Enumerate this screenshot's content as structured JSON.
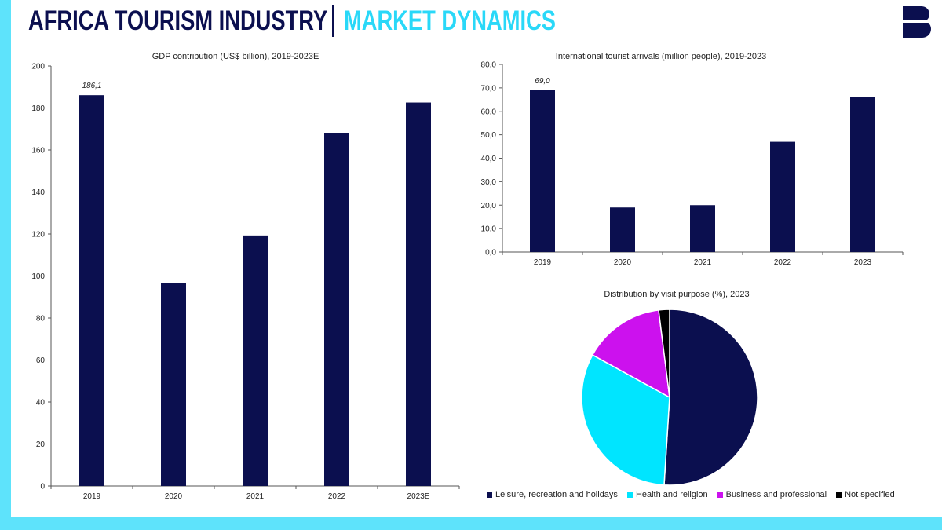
{
  "header": {
    "title": "AFRICA TOURISM INDUSTRY",
    "subtitle": "MARKET DYNAMICS",
    "logo_letter": "B"
  },
  "colors": {
    "navy": "#0b0f4f",
    "accent": "#5ee3fb",
    "cyan": "#00e5ff",
    "magenta": "#cc11ee",
    "black": "#000000"
  },
  "chart_data": [
    {
      "id": "gdp",
      "type": "bar",
      "title": "GDP contribution (US$ billion), 2019-2023E",
      "categories": [
        "2019",
        "2020",
        "2021",
        "2022",
        "2023E"
      ],
      "values": [
        186.1,
        96.5,
        119.3,
        168.0,
        182.6
      ],
      "ylim": [
        0,
        200
      ],
      "yticks": [
        "0",
        "20",
        "40",
        "60",
        "80",
        "100",
        "120",
        "140",
        "160",
        "180",
        "200"
      ],
      "annotation": {
        "index": 0,
        "text": "186,1"
      },
      "xlabel": "",
      "ylabel": ""
    },
    {
      "id": "arrivals",
      "type": "bar",
      "title": "International tourist arrivals (million people), 2019-2023",
      "categories": [
        "2019",
        "2020",
        "2021",
        "2022",
        "2023"
      ],
      "values": [
        69.0,
        19.0,
        20.0,
        47.0,
        66.0
      ],
      "ylim": [
        0,
        80
      ],
      "yticks": [
        "0,0",
        "10,0",
        "20,0",
        "30,0",
        "40,0",
        "50,0",
        "60,0",
        "70,0",
        "80,0"
      ],
      "annotation": {
        "index": 0,
        "text": "69,0"
      },
      "xlabel": "",
      "ylabel": ""
    },
    {
      "id": "purpose",
      "type": "pie",
      "title": "Distribution by visit purpose (%), 2023",
      "labels": [
        "Leisure, recreation and holidays",
        "Health and religion",
        "Business and professional",
        "Not specified"
      ],
      "values": [
        51,
        32,
        15,
        2
      ],
      "colors": [
        "#0b0f4f",
        "#00e5ff",
        "#cc11ee",
        "#000000"
      ],
      "legend_position": "bottom"
    }
  ]
}
